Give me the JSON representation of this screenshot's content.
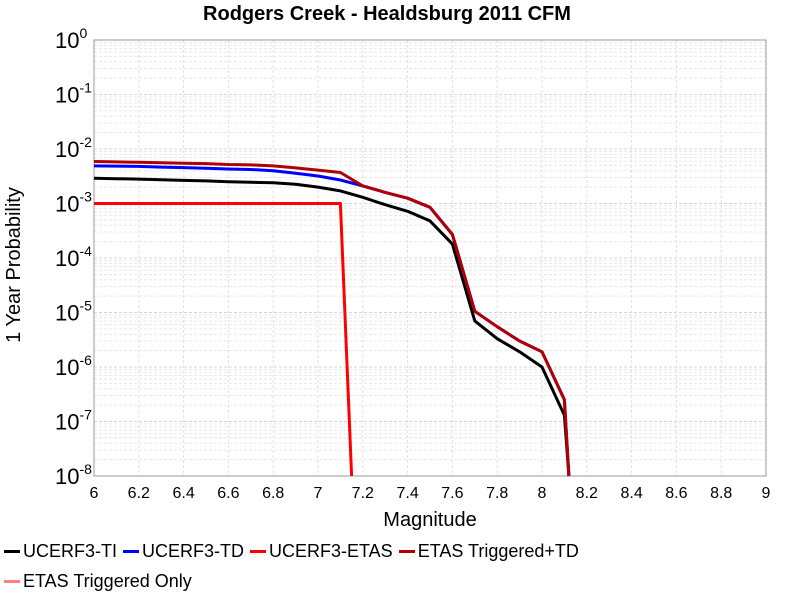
{
  "chart_data": {
    "type": "line",
    "title": "Rodgers Creek - Healdsburg 2011 CFM",
    "xlabel": "Magnitude",
    "ylabel": "1 Year Probability",
    "xlim": [
      6,
      9
    ],
    "ylim": [
      1e-08,
      1
    ],
    "yscale": "log",
    "grid": true,
    "legend_position": "bottom",
    "xticks": [
      6,
      6.2,
      6.4,
      6.6,
      6.8,
      7,
      7.2,
      7.4,
      7.6,
      7.8,
      8,
      8.2,
      8.4,
      8.6,
      8.8,
      9
    ],
    "xtick_labels": [
      "6",
      "6.2",
      "6.4",
      "6.6",
      "6.8",
      "7",
      "7.2",
      "7.4",
      "7.6",
      "7.8",
      "8",
      "8.2",
      "8.4",
      "8.6",
      "8.8",
      "9"
    ],
    "yticks": [
      {
        "value": 1,
        "base": "10",
        "exp": "0"
      },
      {
        "value": 0.1,
        "base": "10",
        "exp": "-1"
      },
      {
        "value": 0.01,
        "base": "10",
        "exp": "-2"
      },
      {
        "value": 0.001,
        "base": "10",
        "exp": "-3"
      },
      {
        "value": 0.0001,
        "base": "10",
        "exp": "-4"
      },
      {
        "value": 1e-05,
        "base": "10",
        "exp": "-5"
      },
      {
        "value": 1e-06,
        "base": "10",
        "exp": "-6"
      },
      {
        "value": 1e-07,
        "base": "10",
        "exp": "-7"
      },
      {
        "value": 1e-08,
        "base": "10",
        "exp": "-8"
      }
    ],
    "series": [
      {
        "name": "ETAS Triggered Only",
        "color": "#ff8080",
        "x": [],
        "y": []
      },
      {
        "name": "UCERF3-ETAS",
        "color": "#ff0000",
        "x": [
          6.0,
          7.1,
          7.15
        ],
        "y": [
          0.001,
          0.001,
          1e-08
        ]
      },
      {
        "name": "UCERF3-TI",
        "color": "#000000",
        "x": [
          6.0,
          6.1,
          6.2,
          6.3,
          6.4,
          6.5,
          6.6,
          6.7,
          6.8,
          6.9,
          7.0,
          7.1,
          7.2,
          7.3,
          7.4,
          7.5,
          7.6,
          7.7,
          7.8,
          7.9,
          8.0,
          8.1,
          8.12
        ],
        "y": [
          0.0029,
          0.00285,
          0.0028,
          0.00272,
          0.00265,
          0.0026,
          0.0025,
          0.00245,
          0.0024,
          0.00225,
          0.002,
          0.0017,
          0.0013,
          0.00095,
          0.00072,
          0.00048,
          0.00018,
          7e-06,
          3.3e-06,
          1.9e-06,
          1e-06,
          1.3e-07,
          1e-08
        ]
      },
      {
        "name": "UCERF3-TD",
        "color": "#0000ff",
        "x": [
          6.0,
          6.1,
          6.2,
          6.3,
          6.4,
          6.5,
          6.6,
          6.7,
          6.8,
          6.9,
          7.0,
          7.1,
          7.2,
          7.3,
          7.4,
          7.5,
          7.6,
          7.7,
          7.8,
          7.9,
          8.0,
          8.1,
          8.12
        ],
        "y": [
          0.0049,
          0.00485,
          0.0048,
          0.00465,
          0.00455,
          0.00445,
          0.0043,
          0.0042,
          0.004,
          0.0036,
          0.0032,
          0.0027,
          0.0021,
          0.0016,
          0.00125,
          0.00085,
          0.00027,
          1.05e-05,
          5.5e-06,
          3e-06,
          1.9e-06,
          2.5e-07,
          1e-08
        ]
      },
      {
        "name": "ETAS Triggered+TD",
        "color": "#b00000",
        "x": [
          6.0,
          6.1,
          6.2,
          6.3,
          6.4,
          6.5,
          6.6,
          6.7,
          6.8,
          6.9,
          7.0,
          7.1,
          7.2,
          7.3,
          7.4,
          7.5,
          7.6,
          7.7,
          7.8,
          7.9,
          8.0,
          8.1,
          8.12
        ],
        "y": [
          0.0059,
          0.0058,
          0.0057,
          0.0056,
          0.0055,
          0.0054,
          0.0052,
          0.0051,
          0.0049,
          0.0045,
          0.0041,
          0.0037,
          0.0021,
          0.0016,
          0.00125,
          0.00085,
          0.00027,
          1.05e-05,
          5.5e-06,
          3e-06,
          1.9e-06,
          2.5e-07,
          1e-08
        ]
      }
    ]
  },
  "legend": {
    "rows": [
      [
        {
          "name": "UCERF3-TI",
          "color": "#000000"
        },
        {
          "name": "UCERF3-TD",
          "color": "#0000ff"
        },
        {
          "name": "UCERF3-ETAS",
          "color": "#ff0000"
        },
        {
          "name": "ETAS Triggered+TD",
          "color": "#b00000"
        }
      ],
      [
        {
          "name": "ETAS Triggered Only",
          "color": "#ff8080"
        }
      ]
    ]
  }
}
